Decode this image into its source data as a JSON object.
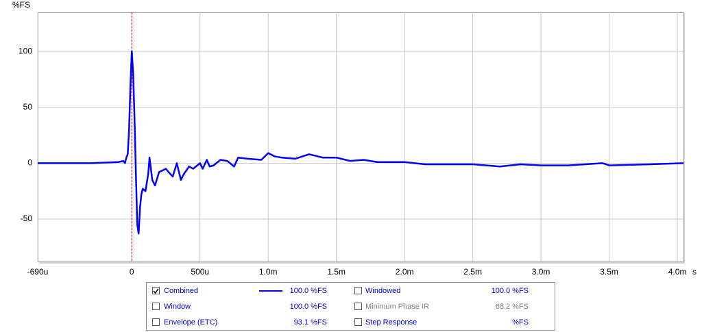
{
  "chart_data": {
    "type": "line",
    "ylabel": "%FS",
    "x_unit": "s",
    "xlim": [
      -0.69,
      4.045
    ],
    "ylim": [
      -88,
      135
    ],
    "xticks": [
      {
        "value": -0.69,
        "label": "-690u"
      },
      0,
      {
        "value": 0.5,
        "label": "500u"
      },
      {
        "value": 1,
        "label": "1.0m"
      },
      {
        "value": 1.5,
        "label": "1.5m"
      },
      {
        "value": 2,
        "label": "2.0m"
      },
      {
        "value": 2.5,
        "label": "2.5m"
      },
      {
        "value": 3,
        "label": "3.0m"
      },
      {
        "value": 3.5,
        "label": "3.5m"
      },
      {
        "value": 4,
        "label": "4.0m"
      }
    ],
    "yticks": [
      -50,
      0,
      50,
      100
    ],
    "grid": true,
    "series": [
      {
        "name": "Combined",
        "color": "#0000ff",
        "checked": true,
        "level": "100.0 %FS",
        "x": [
          -0.69,
          -0.3,
          -0.1,
          -0.06,
          -0.05,
          -0.04,
          -0.03,
          -0.02,
          -0.01,
          0,
          0.01,
          0.02,
          0.03,
          0.04,
          0.05,
          0.06,
          0.07,
          0.08,
          0.1,
          0.12,
          0.13,
          0.15,
          0.17,
          0.2,
          0.25,
          0.27,
          0.3,
          0.33,
          0.36,
          0.38,
          0.42,
          0.45,
          0.5,
          0.52,
          0.55,
          0.57,
          0.6,
          0.65,
          0.7,
          0.75,
          0.78,
          0.85,
          0.95,
          1.0,
          1.05,
          1.1,
          1.2,
          1.3,
          1.4,
          1.5,
          1.6,
          1.7,
          1.8,
          2.0,
          2.15,
          2.3,
          2.5,
          2.7,
          2.85,
          3.0,
          3.2,
          3.45,
          3.5,
          3.8,
          4.045
        ],
        "values": [
          0,
          0,
          1,
          2,
          0,
          5,
          8,
          30,
          70,
          100,
          80,
          40,
          -10,
          -55,
          -63,
          -40,
          -28,
          -23,
          -25,
          -10,
          5,
          -15,
          -20,
          -8,
          -5,
          -8,
          -12,
          0,
          -15,
          -10,
          -3,
          -5,
          0,
          -5,
          3,
          -3,
          -2,
          3,
          2,
          -3,
          5,
          4,
          3,
          9,
          6,
          5,
          4,
          8,
          5,
          5,
          2,
          3,
          1,
          1,
          -1,
          -1,
          -1,
          -3,
          -1,
          -2,
          -2,
          0,
          -2,
          -1,
          0
        ]
      }
    ],
    "legend": [
      {
        "name": "Window",
        "level": "100.0 %FS",
        "checked": false,
        "color": "#0000cc"
      },
      {
        "name": "Envelope (ETC)",
        "level": "93.1 %FS",
        "checked": false,
        "color": "#0000cc"
      },
      {
        "name": "Windowed",
        "level": "100.0 %FS",
        "checked": false,
        "color": "#0000cc"
      },
      {
        "name": "Minimum Phase IR",
        "level": "68.2 %FS",
        "checked": false,
        "color": "#808080"
      },
      {
        "name": "Step Response",
        "level": "%FS",
        "checked": false,
        "color": "#0000cc"
      }
    ]
  }
}
